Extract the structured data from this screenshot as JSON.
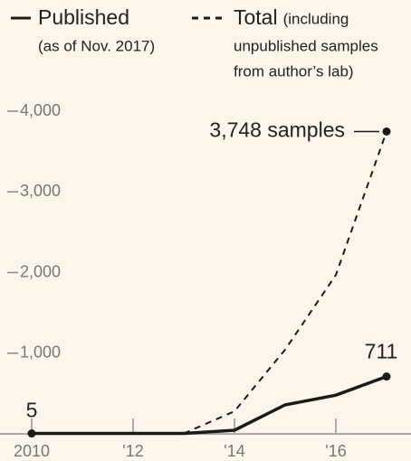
{
  "chart_data": {
    "type": "line",
    "x": [
      2010,
      2011,
      2012,
      2013,
      2014,
      2015,
      2016,
      2017
    ],
    "xlim": [
      2010,
      2017
    ],
    "xticks": [
      {
        "value": 2010,
        "label": "2010"
      },
      {
        "value": 2012,
        "label": "'12"
      },
      {
        "value": 2014,
        "label": "'14"
      },
      {
        "value": 2016,
        "label": "'16"
      }
    ],
    "ylim": [
      0,
      4000
    ],
    "yticks": [
      {
        "value": 1000,
        "label": "1,000"
      },
      {
        "value": 2000,
        "label": "2,000"
      },
      {
        "value": 3000,
        "label": "3,000"
      },
      {
        "value": 4000,
        "label": "4,000"
      }
    ],
    "grid": false,
    "series": [
      {
        "name": "Published",
        "note": [
          "(as of Nov. 2017)"
        ],
        "color": "#1a1a1a",
        "dash": false,
        "values": [
          5,
          5,
          5,
          5,
          45,
          360,
          480,
          711
        ],
        "value_labels": [
          "5",
          null,
          null,
          null,
          null,
          null,
          null,
          "711"
        ]
      },
      {
        "name": "Total",
        "note": [
          "(including",
          "unpublished samples",
          "from author’s lab)"
        ],
        "color": "#1a1a1a",
        "dash": true,
        "values": [
          null,
          null,
          null,
          5,
          280,
          1045,
          1970,
          3748
        ],
        "value_labels": [
          null,
          null,
          null,
          null,
          null,
          null,
          null,
          "3,748 samples"
        ]
      }
    ]
  }
}
